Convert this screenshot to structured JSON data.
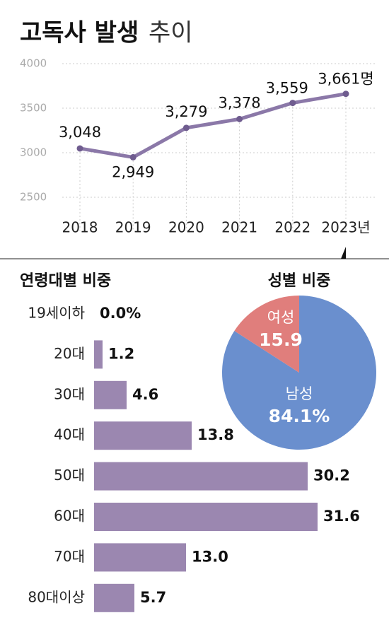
{
  "chart_data": [
    {
      "type": "line",
      "title": "고독사 발생",
      "subtitle": "추이",
      "categories": [
        "2018",
        "2019",
        "2020",
        "2021",
        "2022",
        "2023년"
      ],
      "values": [
        3048,
        2949,
        3279,
        3378,
        3559,
        3661
      ],
      "value_labels": [
        "3,048",
        "2,949",
        "3,279",
        "3,378",
        "3,559",
        "3,661명"
      ],
      "color": "#8b78a8",
      "ylim": [
        2300,
        4000
      ],
      "yticks": [
        2500,
        3000,
        3500,
        4000
      ],
      "grid": true
    },
    {
      "type": "hbar",
      "title": "연령대별 비중",
      "categories": [
        "19세이하",
        "20대",
        "30대",
        "40대",
        "50대",
        "60대",
        "70대",
        "80대이상"
      ],
      "values": [
        0.0,
        1.2,
        4.6,
        13.8,
        30.2,
        31.6,
        13.0,
        5.7
      ],
      "value_labels": [
        "0.0%",
        "1.2",
        "4.6",
        "13.8",
        "30.2",
        "31.6",
        "13.0",
        "5.7"
      ],
      "color": "#9b87b0"
    },
    {
      "type": "pie",
      "title": "성별 비중",
      "categories": [
        "여성",
        "남성"
      ],
      "values": [
        15.9,
        84.1
      ],
      "value_labels": [
        "15.9",
        "84.1%"
      ],
      "colors": [
        "#e07e7c",
        "#6a8fce"
      ]
    }
  ]
}
